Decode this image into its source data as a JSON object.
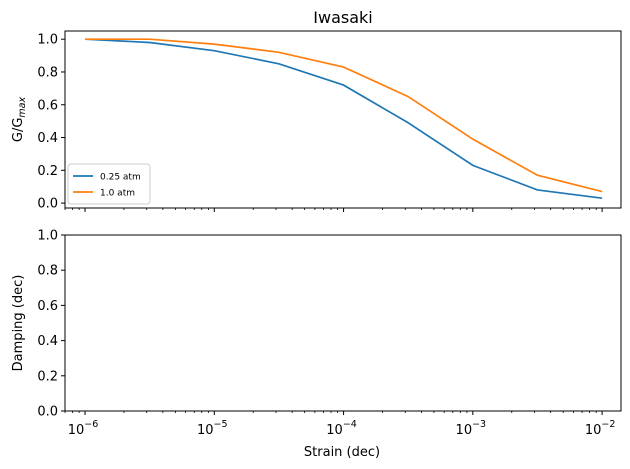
{
  "chart_data": [
    {
      "type": "line",
      "title": "Iwasaki",
      "xlabel": "",
      "ylabel": "G/G",
      "ylabel_sub": "max",
      "xscale": "log",
      "x": [
        1e-06,
        3.16e-06,
        1e-05,
        3.16e-05,
        0.0001,
        0.000316,
        0.001,
        0.00316,
        0.01
      ],
      "xlim": [
        7e-07,
        0.014
      ],
      "ylim": [
        -0.03,
        1.05
      ],
      "yticks": [
        0.0,
        0.2,
        0.4,
        0.6,
        0.8,
        1.0
      ],
      "xticks": [
        "10^-6",
        "10^-5",
        "10^-4",
        "10^-3",
        "10^-2"
      ],
      "show_xtick_labels": false,
      "grid": false,
      "legend": "lower-left",
      "series": [
        {
          "name": "0.25 atm",
          "color": "#1f77b4",
          "values": [
            1.0,
            0.98,
            0.93,
            0.85,
            0.72,
            0.49,
            0.23,
            0.08,
            0.03
          ]
        },
        {
          "name": "1.0 atm",
          "color": "#ff7f0e",
          "values": [
            1.0,
            1.0,
            0.97,
            0.92,
            0.83,
            0.65,
            0.39,
            0.17,
            0.07
          ]
        }
      ]
    },
    {
      "type": "line",
      "title": "",
      "xlabel": "Strain (dec)",
      "ylabel": "Damping (dec)",
      "xscale": "log",
      "x": [],
      "xlim": [
        7e-07,
        0.014
      ],
      "ylim": [
        0.0,
        1.0
      ],
      "yticks": [
        0.0,
        0.2,
        0.4,
        0.6,
        0.8,
        1.0
      ],
      "xticks": [
        "10^-6",
        "10^-5",
        "10^-4",
        "10^-3",
        "10^-2"
      ],
      "show_xtick_labels": true,
      "grid": false,
      "series": []
    }
  ]
}
